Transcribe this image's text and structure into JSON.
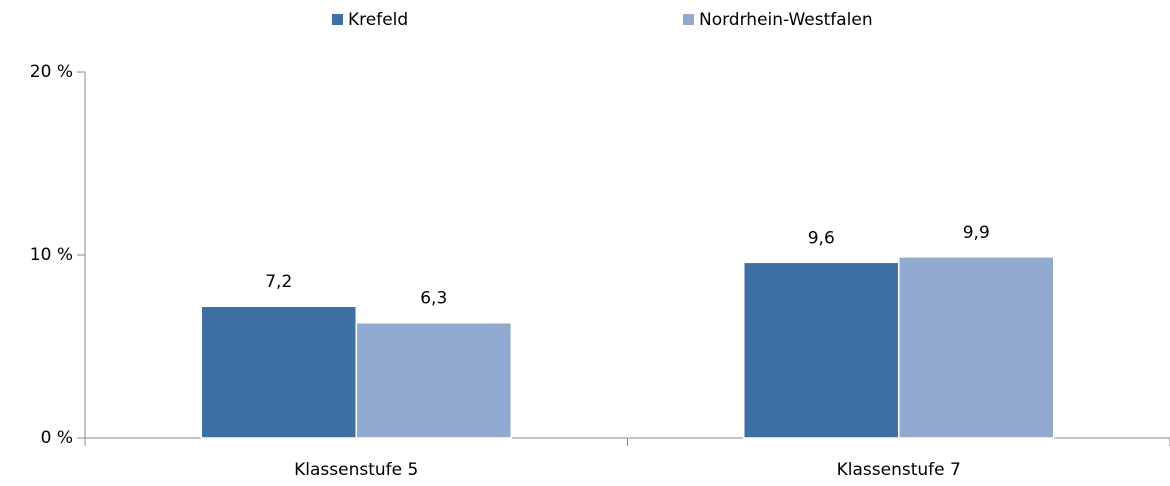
{
  "chart_data": {
    "type": "bar",
    "categories": [
      "Klassenstufe 5",
      "Klassenstufe 7"
    ],
    "series": [
      {
        "name": "Krefeld",
        "color": "#3e70a4",
        "values": [
          7.2,
          9.6
        ],
        "value_labels": [
          "7,2",
          "9,6"
        ]
      },
      {
        "name": "Nordrhein-Westfalen",
        "color": "#93aad0",
        "values": [
          6.3,
          9.9
        ],
        "value_labels": [
          "6,3",
          "9,9"
        ]
      }
    ],
    "ylim": [
      0,
      20
    ],
    "yticks": [
      {
        "value": 0,
        "label": "0 %"
      },
      {
        "value": 10,
        "label": "10 %"
      },
      {
        "value": 20,
        "label": "20 %"
      }
    ],
    "legend": "top"
  }
}
